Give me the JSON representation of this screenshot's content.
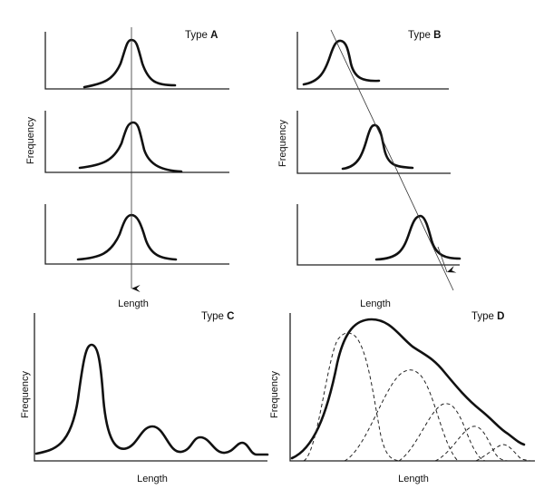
{
  "panels": {
    "a": {
      "title": "Type ",
      "title_letter": "A",
      "ylabel": "Frequency",
      "xlabel": "Length"
    },
    "b": {
      "title": "Type ",
      "title_letter": "B",
      "ylabel": "Frequency",
      "xlabel": "Length"
    },
    "c": {
      "title": "Type ",
      "title_letter": "C",
      "ylabel": "Frequency",
      "xlabel": "Length"
    },
    "d": {
      "title": "Type ",
      "title_letter": "D",
      "ylabel": "Frequency",
      "xlabel": "Length"
    }
  },
  "colors": {
    "ink": "#111111",
    "background": "#ffffff"
  }
}
